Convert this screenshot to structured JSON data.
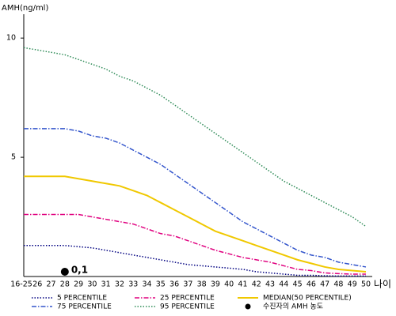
{
  "chart_data": {
    "type": "line",
    "y_label": "AMH(ng/ml)",
    "x_label": "나이",
    "categories": [
      "16-25",
      "26",
      "27",
      "28",
      "29",
      "30",
      "31",
      "32",
      "33",
      "34",
      "35",
      "36",
      "37",
      "38",
      "39",
      "40",
      "41",
      "42",
      "43",
      "44",
      "45",
      "46",
      "47",
      "48",
      "49",
      "50"
    ],
    "ylim": [
      0,
      11
    ],
    "yticks": [
      5,
      10
    ],
    "series": [
      {
        "name": "5 PERCENTILE",
        "color": "#000080",
        "dash": "dotted",
        "values": [
          1.3,
          1.3,
          1.3,
          1.3,
          1.25,
          1.2,
          1.1,
          1.0,
          0.9,
          0.8,
          0.7,
          0.6,
          0.5,
          0.45,
          0.4,
          0.35,
          0.3,
          0.2,
          0.15,
          0.1,
          0.05,
          0.05,
          0.03,
          0.02,
          0.02,
          0.02
        ]
      },
      {
        "name": "25 PERCENTILE",
        "color": "#e0007f",
        "dash": "dashdot",
        "values": [
          2.6,
          2.6,
          2.6,
          2.6,
          2.6,
          2.5,
          2.4,
          2.3,
          2.2,
          2.0,
          1.8,
          1.7,
          1.5,
          1.3,
          1.1,
          0.95,
          0.8,
          0.7,
          0.6,
          0.45,
          0.3,
          0.25,
          0.15,
          0.12,
          0.1,
          0.1
        ]
      },
      {
        "name": "MEDIAN(50 PERCENTILE)",
        "color": "#f0c800",
        "dash": "solid",
        "values": [
          4.2,
          4.2,
          4.2,
          4.2,
          4.1,
          4.0,
          3.9,
          3.8,
          3.6,
          3.4,
          3.1,
          2.8,
          2.5,
          2.2,
          1.9,
          1.7,
          1.5,
          1.3,
          1.1,
          0.9,
          0.7,
          0.55,
          0.4,
          0.3,
          0.25,
          0.2
        ]
      },
      {
        "name": "75 PERCENTILE",
        "color": "#3355cc",
        "dash": "dashdot",
        "values": [
          6.2,
          6.2,
          6.2,
          6.2,
          6.1,
          5.9,
          5.8,
          5.6,
          5.3,
          5.0,
          4.7,
          4.3,
          3.9,
          3.5,
          3.1,
          2.7,
          2.3,
          2.0,
          1.7,
          1.4,
          1.1,
          0.9,
          0.8,
          0.6,
          0.5,
          0.4
        ]
      },
      {
        "name": "95 PERCENTILE",
        "color": "#2e8b57",
        "dash": "dotted",
        "values": [
          9.6,
          9.5,
          9.4,
          9.3,
          9.1,
          8.9,
          8.7,
          8.4,
          8.2,
          7.9,
          7.6,
          7.2,
          6.8,
          6.4,
          6.0,
          5.6,
          5.2,
          4.8,
          4.4,
          4.0,
          3.7,
          3.4,
          3.1,
          2.8,
          2.5,
          2.1
        ]
      }
    ],
    "patient": {
      "name": "수진자의 AMH 농도",
      "x": "28",
      "value": 0.1,
      "value_label": "0,1",
      "color": "#000000"
    }
  }
}
